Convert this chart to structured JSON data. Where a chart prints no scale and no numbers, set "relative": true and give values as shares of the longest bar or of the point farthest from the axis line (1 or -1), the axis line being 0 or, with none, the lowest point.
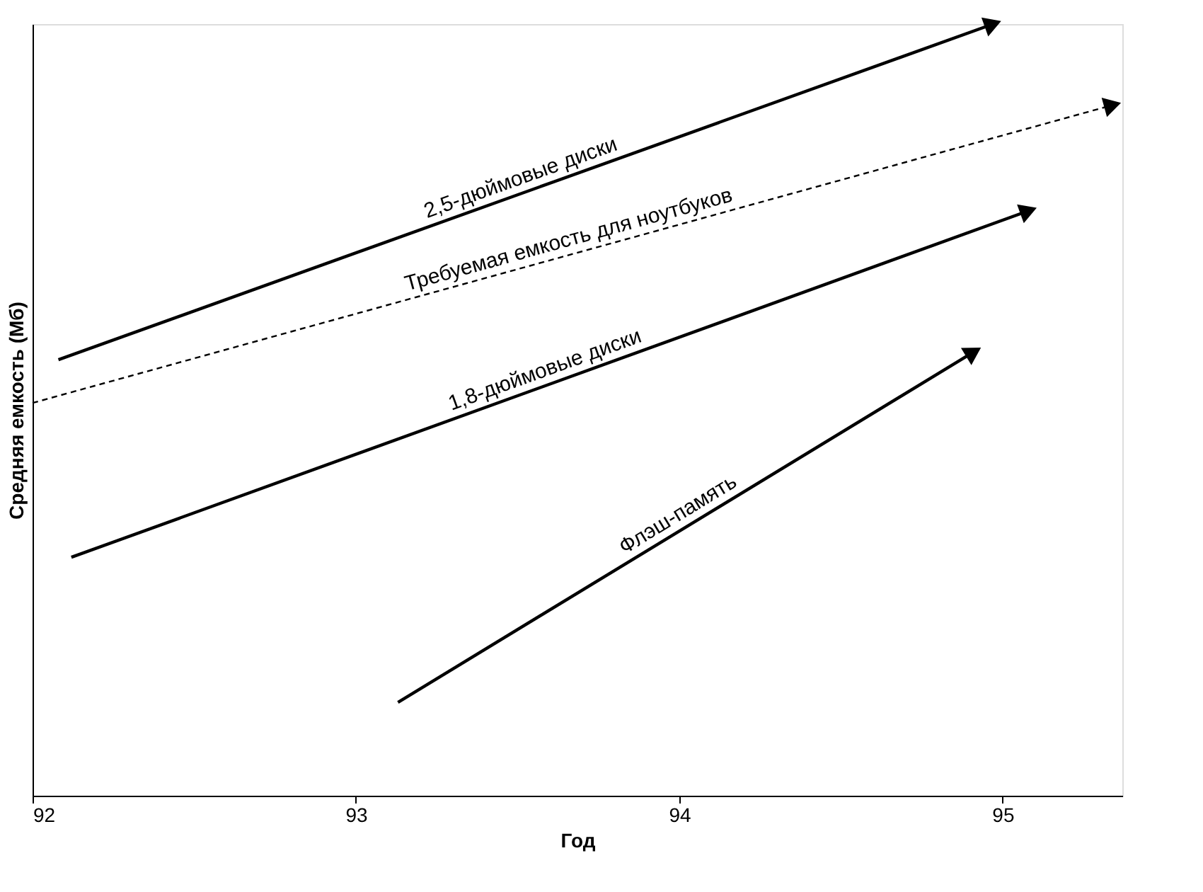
{
  "chart_data": {
    "type": "line",
    "relative": true,
    "xlabel": "Год",
    "ylabel": "Средняя емкость (Мб)",
    "xlim": [
      92,
      95.37
    ],
    "xticks": [
      92,
      93,
      94,
      95
    ],
    "tick_labels": "x",
    "grid": false,
    "series": [
      {
        "name": "2,5-дюймовые диски",
        "color": "#000000",
        "line_style": "solid",
        "x": [
          92.08,
          94.97
        ],
        "values": [
          0.565,
          1.0
        ]
      },
      {
        "name": "Требуемая емкость для ноутбуков",
        "color": "#000000",
        "line_style": "dashed",
        "x": [
          92,
          95.34
        ],
        "values": [
          0.509,
          0.895
        ]
      },
      {
        "name": "1,8-дюймовые диски",
        "color": "#000000",
        "line_style": "solid",
        "x": [
          92.12,
          95.08
        ],
        "values": [
          0.309,
          0.758
        ]
      },
      {
        "name": "Флэш-память",
        "color": "#000000",
        "line_style": "solid",
        "x": [
          93.13,
          94.91
        ],
        "values": [
          0.121,
          0.575
        ]
      }
    ]
  }
}
